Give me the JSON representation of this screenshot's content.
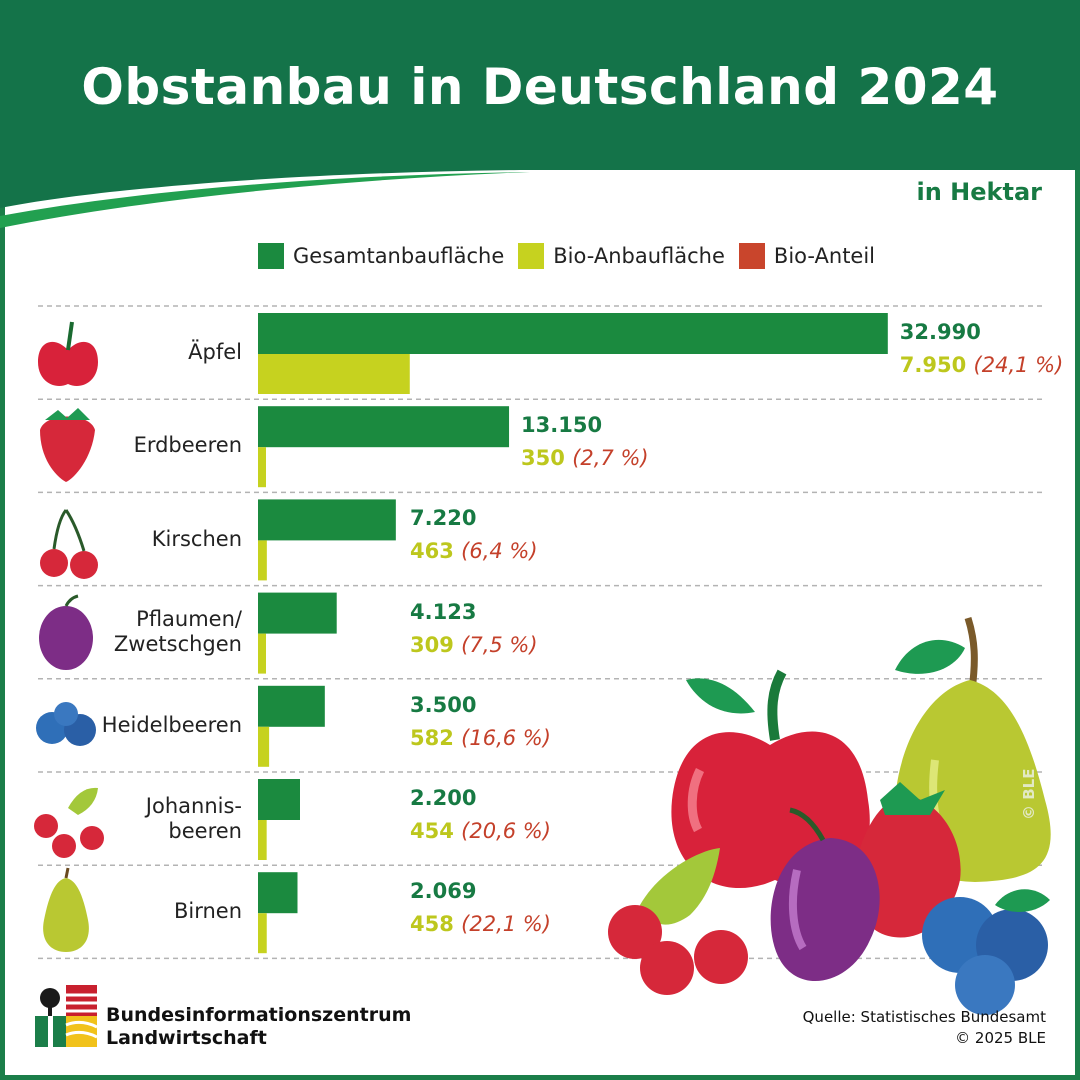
{
  "header": {
    "title": "Obstanbau in Deutschland 2024"
  },
  "unit": "in Hektar",
  "legend": [
    {
      "label": "Gesamtanbaufläche",
      "color": "#1b8a3f"
    },
    {
      "label": "Bio-Anbaufläche",
      "color": "#c6d21f"
    },
    {
      "label": "Bio-Anteil",
      "color": "#c9452c"
    }
  ],
  "chart_data": {
    "type": "bar",
    "orientation": "horizontal",
    "title": "Obstanbau in Deutschland 2024",
    "unit": "in Hektar",
    "categories": [
      "Äpfel",
      "Erdbeeren",
      "Kirschen",
      "Pflaumen/ Zwetschgen",
      "Heidelbeeren",
      "Johannis- beeren",
      "Birnen"
    ],
    "series": [
      {
        "name": "Gesamtanbaufläche",
        "values": [
          32990,
          13150,
          7220,
          4123,
          3500,
          2200,
          2069
        ]
      },
      {
        "name": "Bio-Anbaufläche",
        "values": [
          7950,
          350,
          463,
          309,
          582,
          454,
          458
        ]
      },
      {
        "name": "Bio-Anteil",
        "unit": "%",
        "values": [
          24.1,
          2.7,
          6.4,
          7.5,
          16.6,
          20.6,
          22.1
        ]
      }
    ],
    "value_labels": {
      "total": [
        "32.990",
        "13.150",
        "7.220",
        "4.123",
        "3.500",
        "2.200",
        "2.069"
      ],
      "bio": [
        "7.950",
        "350",
        "463",
        "309",
        "582",
        "454",
        "458"
      ],
      "share": [
        "(24,1 %)",
        "(2,7 %)",
        "(6,4 %)",
        "(7,5 %)",
        "(16,6 %)",
        "(20,6 %)",
        "(22,1 %)"
      ]
    },
    "grid": "dashed row separators",
    "legend_position": "top"
  },
  "categories_display": [
    {
      "lines": [
        "Äpfel"
      ],
      "icon": "apple-icon"
    },
    {
      "lines": [
        "Erdbeeren"
      ],
      "icon": "strawberry-icon"
    },
    {
      "lines": [
        "Kirschen"
      ],
      "icon": "cherries-icon"
    },
    {
      "lines": [
        "Pflaumen/",
        "Zwetschgen"
      ],
      "icon": "plum-icon"
    },
    {
      "lines": [
        "Heidelbeeren"
      ],
      "icon": "blueberries-icon"
    },
    {
      "lines": [
        "Johannis-",
        "beeren"
      ],
      "icon": "currants-icon"
    },
    {
      "lines": [
        "Birnen"
      ],
      "icon": "pear-icon"
    }
  ],
  "footer": {
    "org_line1": "Bundesinformationszentrum",
    "org_line2": "Landwirtschaft",
    "source": "Quelle: Statistisches Bundesamt",
    "copyright": "© 2025 BLE"
  },
  "watermark": "© BLE",
  "colors": {
    "brand_green": "#177a43",
    "header_green": "#147349",
    "frame_green": "#1b7e49"
  }
}
